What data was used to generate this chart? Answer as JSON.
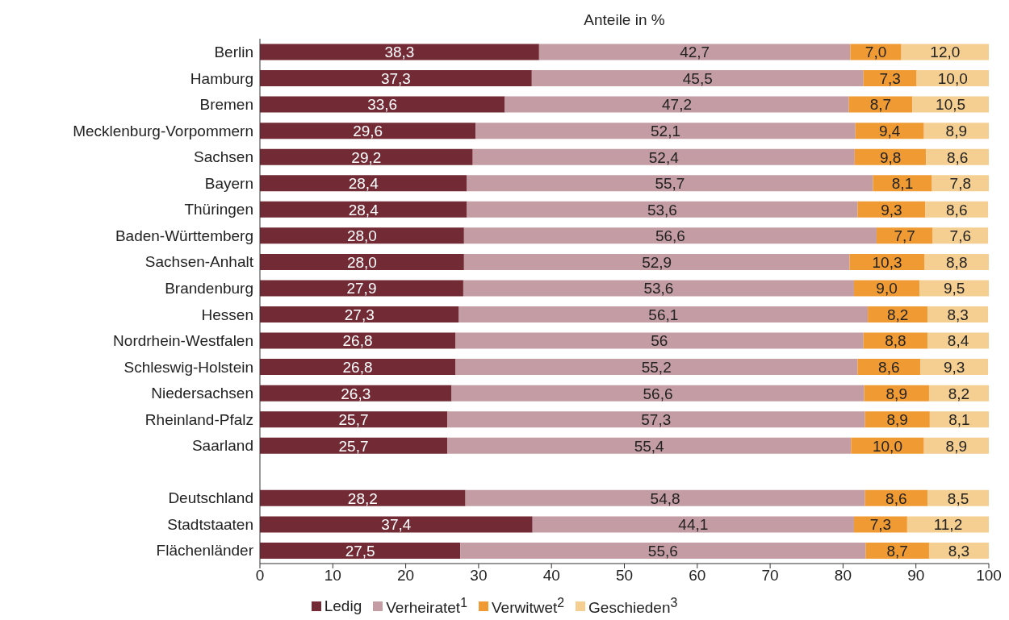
{
  "chart_data": {
    "type": "bar",
    "orientation": "horizontal",
    "stacked": true,
    "title": "Anteile in %",
    "categories": [
      "Berlin",
      "Hamburg",
      "Bremen",
      "Mecklenburg-Vorpommern",
      "Sachsen",
      "Bayern",
      "Thüringen",
      "Baden-Württemberg",
      "Sachsen-Anhalt",
      "Brandenburg",
      "Hessen",
      "Nordrhein-Westfalen",
      "Schleswig-Holstein",
      "Niedersachsen",
      "Rheinland-Pfalz",
      "Saarland",
      null,
      "Deutschland",
      "Stadtstaaten",
      "Flächenländer"
    ],
    "xlim": [
      0,
      100
    ],
    "xticks": [
      0,
      10,
      20,
      30,
      40,
      50,
      60,
      70,
      80,
      90,
      100
    ],
    "legend": "bottom",
    "series": [
      {
        "name": "Ledig",
        "color": "#722a35",
        "values": [
          38.3,
          37.3,
          33.6,
          29.6,
          29.2,
          28.4,
          28.4,
          28.0,
          28.0,
          27.9,
          27.3,
          26.8,
          26.8,
          26.3,
          25.7,
          25.7,
          null,
          28.2,
          37.4,
          27.5
        ],
        "value_labels": [
          "38,3",
          "37,3",
          "33,6",
          "29,6",
          "29,2",
          "28,4",
          "28,4",
          "28,0",
          "28,0",
          "27,9",
          "27,3",
          "26,8",
          "26,8",
          "26,3",
          "25,7",
          "25,7",
          null,
          "28,2",
          "37,4",
          "27,5"
        ]
      },
      {
        "name": "Verheiratet$^{1}$",
        "color": "#c49ca3",
        "values": [
          42.7,
          45.5,
          47.2,
          52.1,
          52.4,
          55.7,
          53.6,
          56.6,
          52.9,
          53.6,
          56.1,
          56,
          55.2,
          56.6,
          57.3,
          55.4,
          null,
          54.8,
          44.1,
          55.6
        ],
        "value_labels": [
          "42,7",
          "45,5",
          "47,2",
          "52,1",
          "52,4",
          "55,7",
          "53,6",
          "56,6",
          "52,9",
          "53,6",
          "56,1",
          "56",
          "55,2",
          "56,6",
          "57,3",
          "55,4",
          null,
          "54,8",
          "44,1",
          "55,6"
        ]
      },
      {
        "name": "Verwitwet$^{2}$",
        "color": "#ef9a33",
        "values": [
          7.0,
          7.3,
          8.7,
          9.4,
          9.8,
          8.1,
          9.3,
          7.7,
          10.3,
          9.0,
          8.2,
          8.8,
          8.6,
          8.9,
          8.9,
          10.0,
          null,
          8.6,
          7.3,
          8.7
        ],
        "value_labels": [
          "7,0",
          "7,3",
          "8,7",
          "9,4",
          "9,8",
          "8,1",
          "9,3",
          "7,7",
          "10,3",
          "9,0",
          "8,2",
          "8,8",
          "8,6",
          "8,9",
          "8,9",
          "10,0",
          null,
          "8,6",
          "7,3",
          "8,7"
        ]
      },
      {
        "name": "Geschieden$^{3}$",
        "color": "#f5cf92",
        "values": [
          12.0,
          10.0,
          10.5,
          8.9,
          8.6,
          7.8,
          8.6,
          7.6,
          8.8,
          9.5,
          8.3,
          8.4,
          9.3,
          8.2,
          8.1,
          8.9,
          null,
          8.5,
          11.2,
          8.3
        ],
        "value_labels": [
          "12,0",
          "10,0",
          "10,5",
          "8,9",
          "8,6",
          "7,8",
          "8,6",
          "7,6",
          "8,8",
          "9,5",
          "8,3",
          "8,4",
          "9,3",
          "8,2",
          "8,1",
          "8,9",
          null,
          "8,5",
          "11,2",
          "8,3"
        ]
      }
    ]
  }
}
